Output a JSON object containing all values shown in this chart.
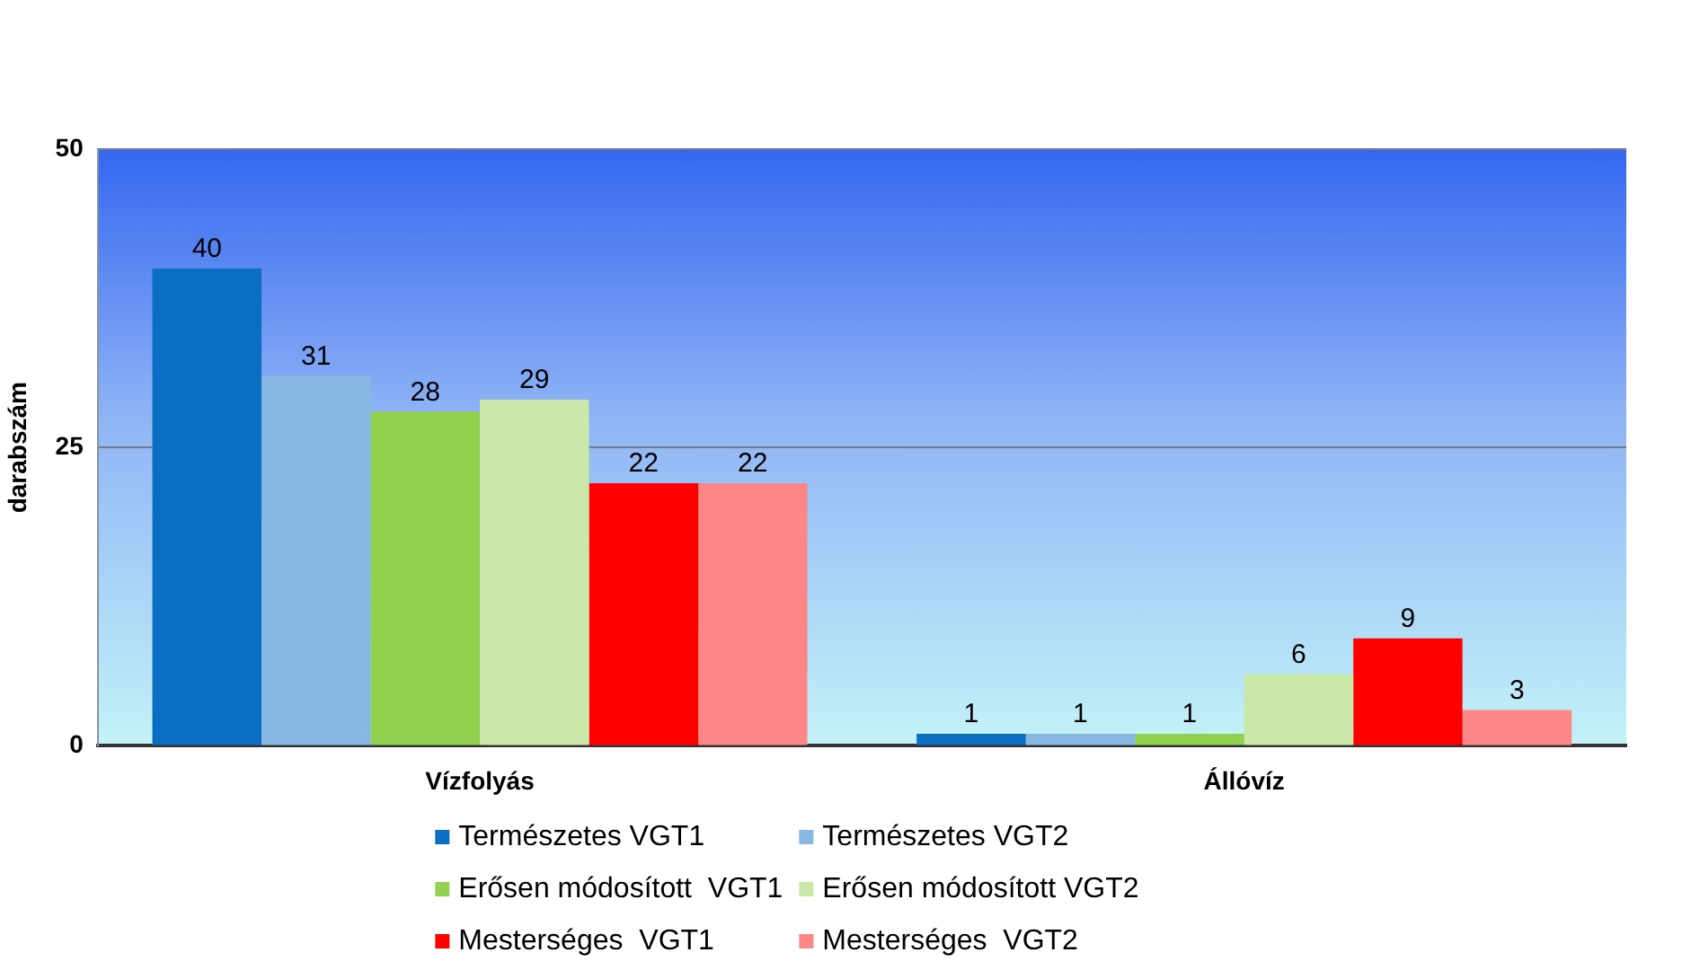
{
  "chart_data": {
    "type": "bar",
    "ylabel": "darabszám",
    "categories": [
      "Vízfolyás",
      "Állóvíz"
    ],
    "series": [
      {
        "name": "Természetes VGT1",
        "color": "#0a6fc2",
        "values": [
          40,
          1
        ]
      },
      {
        "name": "Természetes VGT2",
        "color": "#86b8e2",
        "values": [
          31,
          1
        ]
      },
      {
        "name": "Erősen módosított  VGT1",
        "color": "#92d050",
        "values": [
          28,
          1
        ]
      },
      {
        "name": "Erősen módosított VGT2",
        "color": "#cbe8a9",
        "values": [
          29,
          6
        ]
      },
      {
        "name": "Mesterséges  VGT1",
        "color": "#ff0000",
        "values": [
          22,
          9
        ]
      },
      {
        "name": "Mesterséges  VGT2",
        "color": "#ff8686",
        "values": [
          22,
          3
        ]
      }
    ],
    "ylim": [
      0,
      50
    ],
    "yticks": [
      0,
      25,
      50
    ],
    "grid": "y",
    "legend": "bottom",
    "data_labels": true
  }
}
